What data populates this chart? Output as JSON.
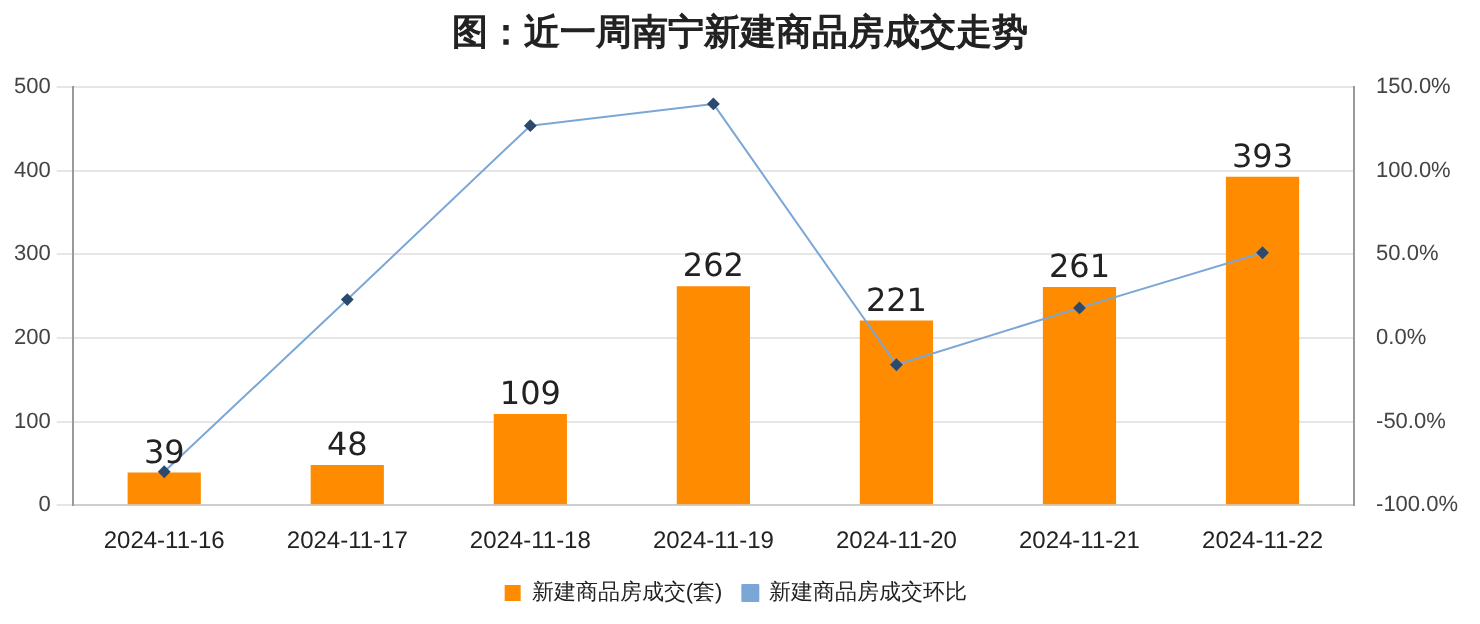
{
  "chart_data": {
    "type": "bar",
    "title": "图：近一周南宁新建商品房成交走势",
    "categories": [
      "2024-11-16",
      "2024-11-17",
      "2024-11-18",
      "2024-11-19",
      "2024-11-20",
      "2024-11-21",
      "2024-11-22"
    ],
    "series": [
      {
        "name": "新建商品房成交(套)",
        "color": "#ff8c00",
        "values": [
          39,
          48,
          109,
          262,
          221,
          261,
          393
        ]
      },
      {
        "name": "新建商品房成交环比",
        "type": "line",
        "axis": "y2",
        "color": "#7ba7d6",
        "marker": "diamond",
        "values": [
          -80,
          23,
          127,
          140,
          -16,
          18,
          51
        ]
      }
    ],
    "ylim": [
      0,
      500
    ],
    "yticks": [
      0,
      100,
      200,
      300,
      400,
      500
    ],
    "y2lim": [
      -100,
      150
    ],
    "y2ticks": [
      {
        "value": -100,
        "label": "-100.0%"
      },
      {
        "value": -50,
        "label": "-50.0%"
      },
      {
        "value": 0,
        "label": "0.0%"
      },
      {
        "value": 50,
        "label": "50.0%"
      },
      {
        "value": 100,
        "label": "100.0%"
      },
      {
        "value": 150,
        "label": "150.0%"
      }
    ],
    "value_labels": [
      "39",
      "48",
      "109",
      "262",
      "221",
      "261",
      "393"
    ],
    "grid": "y",
    "legend": "bottom"
  }
}
